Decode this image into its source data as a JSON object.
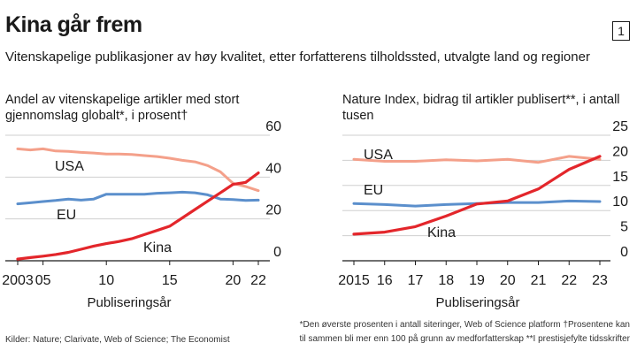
{
  "header": {
    "title": "Kina går frem",
    "badge": "1",
    "subtitle": "Vitenskapelige publikasjoner av høy kvalitet, etter forfatterens tilholdssted, utvalgte land og regioner"
  },
  "footer": {
    "sources": "Kilder: Nature; Clarivate, Web of Science; The Economist",
    "footnote_1": "*Den øverste prosenten i antall siteringer, Web of Science platform    †Prosentene kan",
    "footnote_2": "til sammen bli mer enn 100 på grunn av medforfatterskap    **I prestisjefylte tidsskrifter"
  },
  "chart_data": [
    {
      "type": "line",
      "title": "Andel av vitenskapelige artikler med stort gjennomslag globalt*, i prosent†",
      "xlabel": "Publiseringsår",
      "ylabel": "",
      "x": [
        2003,
        2004,
        2005,
        2006,
        2007,
        2008,
        2009,
        2010,
        2011,
        2012,
        2013,
        2014,
        2015,
        2016,
        2017,
        2018,
        2019,
        2020,
        2021,
        2022
      ],
      "xticks": [
        "2003",
        "05",
        "10",
        "15",
        "20",
        "22"
      ],
      "xtick_values": [
        2003,
        2005,
        2010,
        2015,
        2020,
        2022
      ],
      "yticks": [
        "0",
        "20",
        "40",
        "60"
      ],
      "ylim": [
        0,
        60
      ],
      "grid": true,
      "series": [
        {
          "name": "USA",
          "color": "#f4a08a",
          "values": [
            53.5,
            53,
            53.5,
            52.5,
            52.3,
            51.8,
            51.5,
            51,
            51,
            50.8,
            50.3,
            49.8,
            49,
            48,
            47.3,
            45.5,
            42.5,
            37,
            35.5,
            33.5
          ]
        },
        {
          "name": "EU",
          "color": "#5b8fcc",
          "values": [
            27.2,
            27.7,
            28.3,
            28.8,
            29.5,
            29,
            29.5,
            31.8,
            31.8,
            31.8,
            31.8,
            32.3,
            32.5,
            32.8,
            32.5,
            31.5,
            29.5,
            29.3,
            28.8,
            29
          ]
        },
        {
          "name": "Kina",
          "color": "#e3262b",
          "values": [
            0.8,
            1.5,
            2.2,
            3,
            4,
            5.5,
            7,
            8.2,
            9.2,
            10.5,
            12.5,
            14.5,
            16.5,
            20.5,
            24.5,
            28.5,
            32.5,
            36.5,
            37.5,
            42
          ]
        }
      ]
    },
    {
      "type": "line",
      "title": "Nature Index, bidrag til artikler publisert**, i antall tusen",
      "xlabel": "Publiseringsår",
      "ylabel": "",
      "x": [
        2015,
        2016,
        2017,
        2018,
        2019,
        2020,
        2021,
        2022,
        2023
      ],
      "xticks": [
        "2015",
        "16",
        "17",
        "18",
        "19",
        "20",
        "21",
        "22",
        "23"
      ],
      "xtick_values": [
        2015,
        2016,
        2017,
        2018,
        2019,
        2020,
        2021,
        2022,
        2023
      ],
      "yticks": [
        "0",
        "5",
        "10",
        "15",
        "20",
        "25"
      ],
      "ylim": [
        0,
        25
      ],
      "grid": true,
      "series": [
        {
          "name": "USA",
          "color": "#f4a08a",
          "values": [
            20.2,
            19.8,
            19.8,
            20.1,
            19.9,
            20.2,
            19.6,
            20.8,
            20.2
          ]
        },
        {
          "name": "EU",
          "color": "#5b8fcc",
          "values": [
            11.4,
            11.2,
            10.9,
            11.2,
            11.4,
            11.6,
            11.6,
            11.9,
            11.8
          ]
        },
        {
          "name": "Kina",
          "color": "#e3262b",
          "values": [
            5.3,
            5.7,
            6.8,
            8.9,
            11.3,
            11.9,
            14.3,
            18.2,
            20.8
          ]
        }
      ]
    }
  ]
}
